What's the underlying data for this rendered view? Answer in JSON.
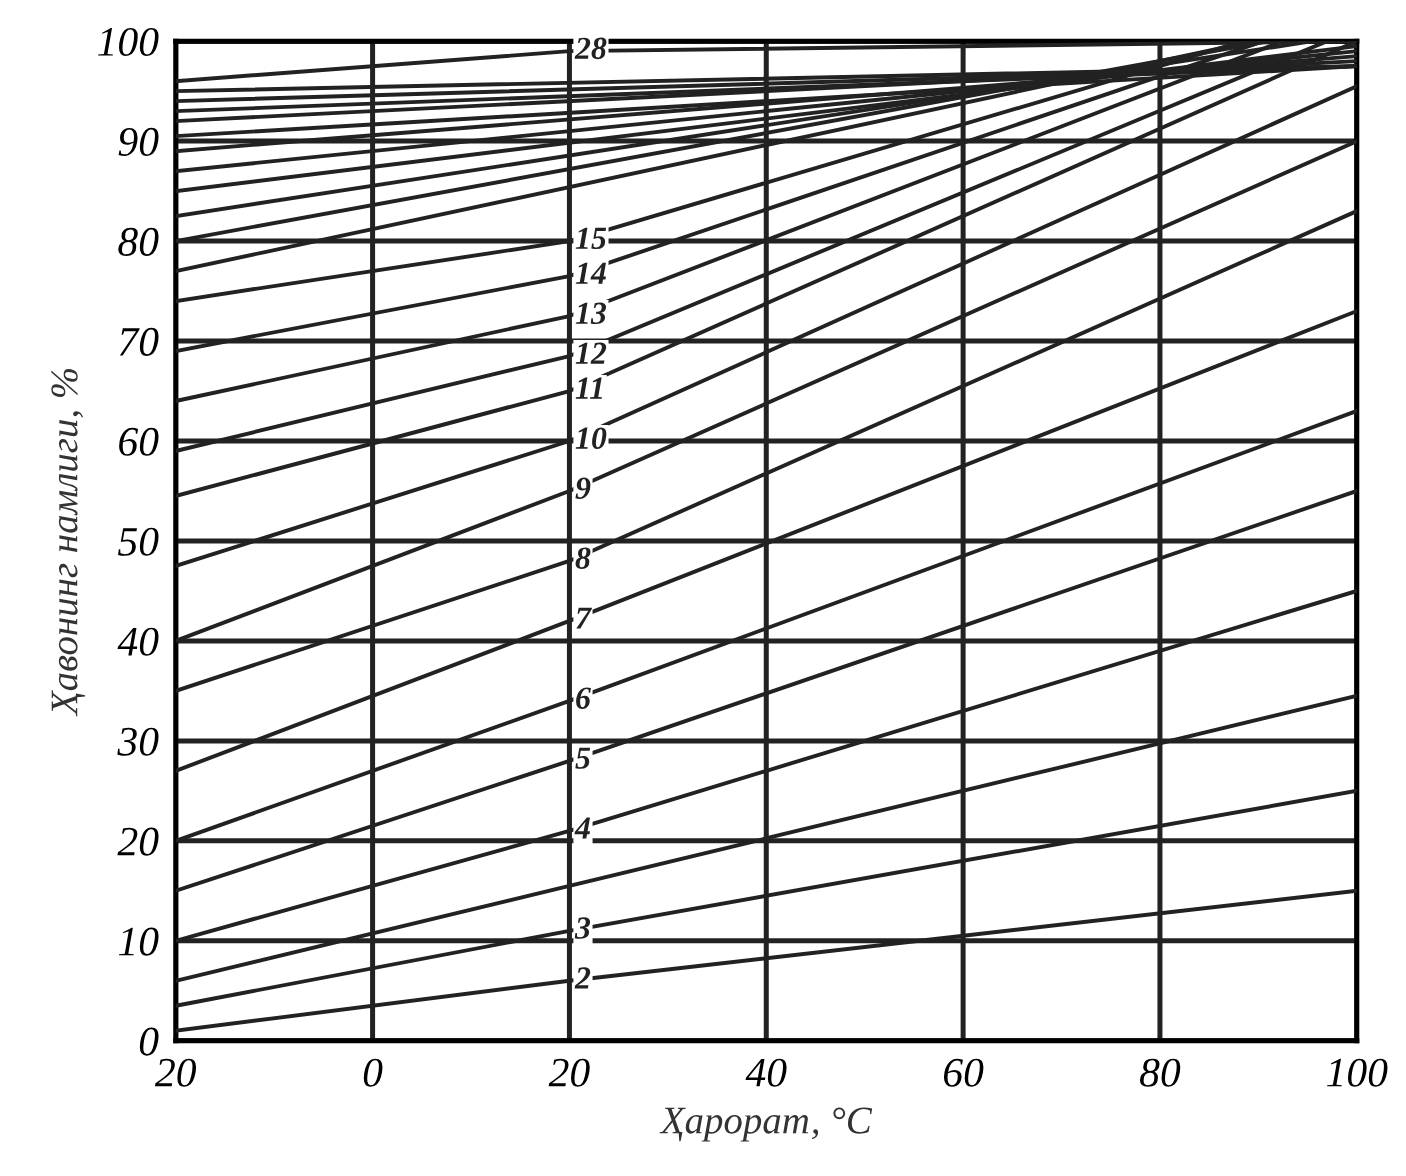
{
  "chart_data": {
    "type": "line",
    "xlabel": "Ҳарорат, °C",
    "ylabel": "Ҳавонинг намлиги, %",
    "xlim": [
      -20,
      100
    ],
    "ylim": [
      0,
      100
    ],
    "xticks": [
      {
        "value": -20,
        "label": "20"
      },
      0,
      20,
      40,
      60,
      80,
      100
    ],
    "yticks": [
      0,
      10,
      20,
      30,
      40,
      50,
      60,
      70,
      80,
      90,
      100
    ],
    "grid": true,
    "marker": "none",
    "line_style": "solid",
    "series": [
      {
        "name": "2",
        "color": "#222222",
        "x": [
          -20,
          20,
          100
        ],
        "values": [
          1,
          6,
          15
        ]
      },
      {
        "name": "3",
        "color": "#222222",
        "x": [
          -20,
          20,
          100
        ],
        "values": [
          3.5,
          11,
          25
        ]
      },
      {
        "color": "#222222",
        "x": [
          -20,
          20,
          100
        ],
        "values": [
          6,
          15.5,
          34.5
        ]
      },
      {
        "name": "4",
        "color": "#222222",
        "x": [
          -20,
          20,
          100
        ],
        "values": [
          10,
          21,
          45
        ]
      },
      {
        "name": "5",
        "color": "#222222",
        "x": [
          -20,
          20,
          100
        ],
        "values": [
          15,
          28,
          55
        ]
      },
      {
        "name": "6",
        "color": "#222222",
        "x": [
          -20,
          20,
          100
        ],
        "values": [
          20,
          34,
          63
        ]
      },
      {
        "name": "7",
        "color": "#222222",
        "x": [
          -20,
          20,
          100
        ],
        "values": [
          27,
          42,
          73
        ]
      },
      {
        "name": "8",
        "color": "#222222",
        "x": [
          -20,
          20,
          100
        ],
        "values": [
          35,
          48,
          83
        ]
      },
      {
        "name": "9",
        "color": "#222222",
        "x": [
          -20,
          20,
          100
        ],
        "values": [
          40,
          55,
          90
        ]
      },
      {
        "name": "10",
        "color": "#222222",
        "x": [
          -20,
          20,
          100
        ],
        "values": [
          47.5,
          60,
          95.5
        ]
      },
      {
        "name": "11",
        "color": "#222222",
        "x": [
          -20,
          20,
          100
        ],
        "values": [
          54.5,
          65,
          100
        ]
      },
      {
        "name": "12",
        "color": "#222222",
        "x": [
          -20,
          20,
          97
        ],
        "values": [
          59,
          68.5,
          100
        ]
      },
      {
        "name": "13",
        "color": "#222222",
        "x": [
          -20,
          20,
          92.5
        ],
        "values": [
          64,
          72.5,
          100
        ]
      },
      {
        "name": "14",
        "color": "#222222",
        "x": [
          -20,
          20,
          90.5
        ],
        "values": [
          69,
          76.5,
          100
        ]
      },
      {
        "name": "15",
        "color": "#222222",
        "x": [
          -20,
          20,
          88.5
        ],
        "values": [
          74,
          80,
          100
        ]
      },
      {
        "color": "#222222",
        "x": [
          -20,
          89.5
        ],
        "values": [
          77,
          100
        ]
      },
      {
        "color": "#222222",
        "x": [
          -20,
          91
        ],
        "values": [
          80,
          100
        ]
      },
      {
        "color": "#222222",
        "x": [
          -20,
          95.5
        ],
        "values": [
          82.5,
          100
        ]
      },
      {
        "color": "#222222",
        "x": [
          -20,
          100
        ],
        "values": [
          85,
          99.5
        ]
      },
      {
        "color": "#222222",
        "x": [
          -20,
          100
        ],
        "values": [
          87,
          99
        ]
      },
      {
        "color": "#222222",
        "x": [
          -20,
          100
        ],
        "values": [
          89,
          98.5
        ]
      },
      {
        "color": "#222222",
        "x": [
          -20,
          100
        ],
        "values": [
          90.5,
          97.5
        ]
      },
      {
        "color": "#222222",
        "x": [
          -20,
          100
        ],
        "values": [
          92,
          98
        ]
      },
      {
        "color": "#222222",
        "x": [
          -20,
          100
        ],
        "values": [
          93,
          97.5
        ]
      },
      {
        "color": "#222222",
        "x": [
          -20,
          100
        ],
        "values": [
          94,
          97.5
        ]
      },
      {
        "color": "#222222",
        "x": [
          -20,
          100
        ],
        "values": [
          95,
          97.5
        ]
      },
      {
        "name": "28",
        "color": "#222222",
        "x": [
          -20,
          20,
          100
        ],
        "values": [
          96,
          99,
          100
        ]
      }
    ]
  }
}
